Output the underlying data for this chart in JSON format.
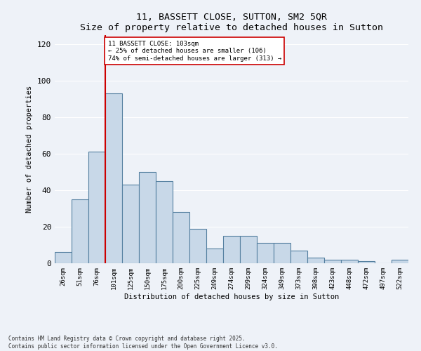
{
  "title": "11, BASSETT CLOSE, SUTTON, SM2 5QR",
  "subtitle": "Size of property relative to detached houses in Sutton",
  "xlabel": "Distribution of detached houses by size in Sutton",
  "ylabel": "Number of detached properties",
  "categories": [
    "26sqm",
    "51sqm",
    "76sqm",
    "101sqm",
    "125sqm",
    "150sqm",
    "175sqm",
    "200sqm",
    "225sqm",
    "249sqm",
    "274sqm",
    "299sqm",
    "324sqm",
    "349sqm",
    "373sqm",
    "398sqm",
    "423sqm",
    "448sqm",
    "472sqm",
    "497sqm",
    "522sqm"
  ],
  "values": [
    6,
    35,
    61,
    93,
    43,
    50,
    45,
    28,
    19,
    8,
    15,
    15,
    11,
    11,
    7,
    3,
    2,
    2,
    1,
    0,
    2
  ],
  "bar_color": "#c8d8e8",
  "bar_edge_color": "#5580a0",
  "bar_linewidth": 0.8,
  "vline_bin": 3,
  "vline_color": "#cc0000",
  "annotation_text": "11 BASSETT CLOSE: 103sqm\n← 25% of detached houses are smaller (106)\n74% of semi-detached houses are larger (313) →",
  "ylim": [
    0,
    125
  ],
  "yticks": [
    0,
    20,
    40,
    60,
    80,
    100,
    120
  ],
  "background_color": "#eef2f8",
  "grid_color": "#ffffff",
  "footer": "Contains HM Land Registry data © Crown copyright and database right 2025.\nContains public sector information licensed under the Open Government Licence v3.0."
}
